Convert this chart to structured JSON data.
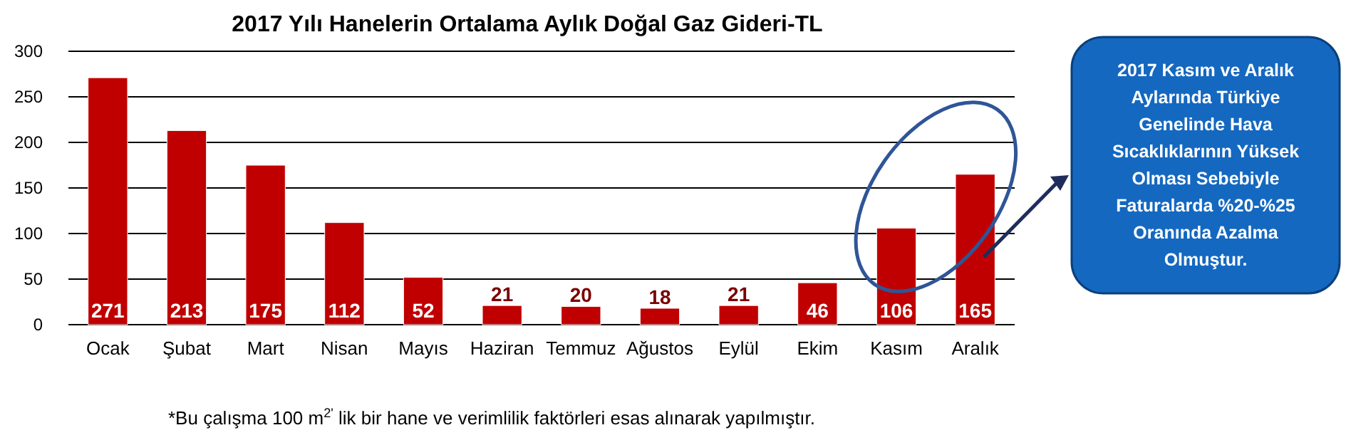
{
  "chart_data": {
    "type": "bar",
    "title": "2017 Yılı Hanelerin Ortalama Aylık Doğal Gaz Gideri-TL",
    "categories": [
      "Ocak",
      "Şubat",
      "Mart",
      "Nisan",
      "Mayıs",
      "Haziran",
      "Temmuz",
      "Ağustos",
      "Eylül",
      "Ekim",
      "Kasım",
      "Aralık"
    ],
    "values": [
      271,
      213,
      175,
      112,
      52,
      21,
      20,
      18,
      21,
      46,
      106,
      165
    ],
    "color": "#c00000",
    "ylim": [
      0,
      300
    ],
    "yticks": [
      0,
      50,
      100,
      150,
      200,
      250,
      300
    ],
    "grid": "y",
    "data_labels": true,
    "annotations": [
      "2017 Kasım ve Aralık Aylarında Türkiye Genelinde Hava Sıcaklıklarının Yüksek Olması Sebebiyle Faturalarda %20-%25 Oranında Azalma Olmuştur.",
      "*Bu çalışma 100 m$^{2'}$ lik bir hane ve verimlilik faktörleri esas alınarak yapılmıştır."
    ]
  }
}
